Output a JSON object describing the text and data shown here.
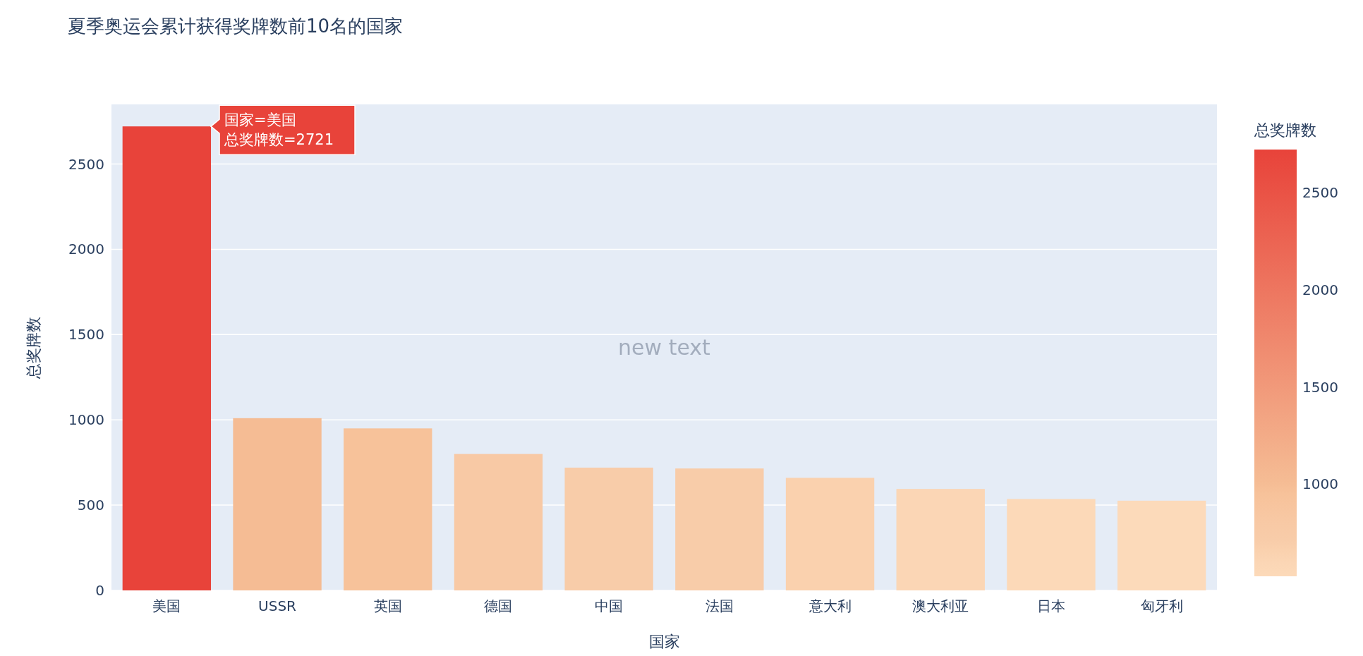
{
  "chart_data": {
    "type": "bar",
    "title": "夏季奥运会累计获得奖牌数前10名的国家",
    "xlabel": "国家",
    "ylabel": "总奖牌数",
    "clabel": "总奖牌数",
    "categories": [
      "美国",
      "USSR",
      "英国",
      "德国",
      "中国",
      "法国",
      "意大利",
      "澳大利亚",
      "日本",
      "匈牙利"
    ],
    "values": [
      2721,
      1010,
      950,
      800,
      720,
      715,
      660,
      595,
      536,
      526
    ],
    "colors": [
      "#e8433a",
      "#f5bc94",
      "#f7c29a",
      "#f8c9a5",
      "#f8cca9",
      "#f8cca9",
      "#fad1ae",
      "#fbd6b5",
      "#fcd9b8",
      "#fcdaba"
    ],
    "ylim": [
      0,
      2850
    ],
    "yticks": [
      0,
      500,
      1000,
      1500,
      2000,
      2500
    ],
    "grid": "y",
    "clim": [
      526,
      2721
    ],
    "cticks": [
      1000,
      1500,
      2000,
      2500
    ],
    "annotations": [
      "国家=美国",
      "总奖牌数=2721",
      "new text"
    ]
  }
}
